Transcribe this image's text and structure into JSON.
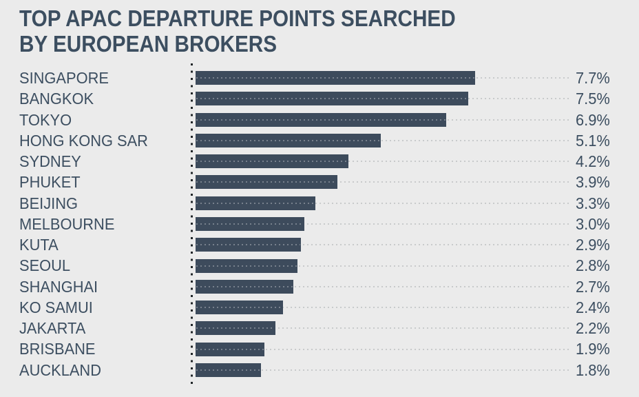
{
  "title": {
    "lines": [
      "TOP APAC DEPARTURE POINTS SEARCHED",
      "BY EUROPEAN BROKERS"
    ]
  },
  "chart_data": {
    "type": "bar",
    "orientation": "horizontal",
    "title": "TOP APAC DEPARTURE POINTS SEARCHED BY EUROPEAN BROKERS",
    "categories": [
      "SINGAPORE",
      "BANGKOK",
      "TOKYO",
      "HONG KONG SAR",
      "SYDNEY",
      "PHUKET",
      "BEIJING",
      "MELBOURNE",
      "KUTA",
      "SEOUL",
      "SHANGHAI",
      "KO SAMUI",
      "JAKARTA",
      "BRISBANE",
      "AUCKLAND"
    ],
    "values": [
      7.7,
      7.5,
      6.9,
      5.1,
      4.2,
      3.9,
      3.3,
      3.0,
      2.9,
      2.8,
      2.7,
      2.4,
      2.2,
      1.9,
      1.8
    ],
    "value_labels": [
      "7.7%",
      "7.5%",
      "6.9%",
      "5.1%",
      "4.2%",
      "3.9%",
      "3.3%",
      "3.0%",
      "2.9%",
      "2.8%",
      "2.7%",
      "2.4%",
      "2.2%",
      "1.9%",
      "1.8%"
    ],
    "unit": "%",
    "xlabel": "",
    "ylabel": "",
    "xlim": [
      0,
      10.3
    ],
    "legend": null,
    "grid": "dotted horizontal leader line per row",
    "axis_style": "dotted vertical baseline at zero",
    "colors": {
      "background": "#ebebeb",
      "bar": "#3d4b5c",
      "text": "#3c4e60",
      "leader_dots": "#c8cacb",
      "axis_dots": "#202528"
    }
  }
}
